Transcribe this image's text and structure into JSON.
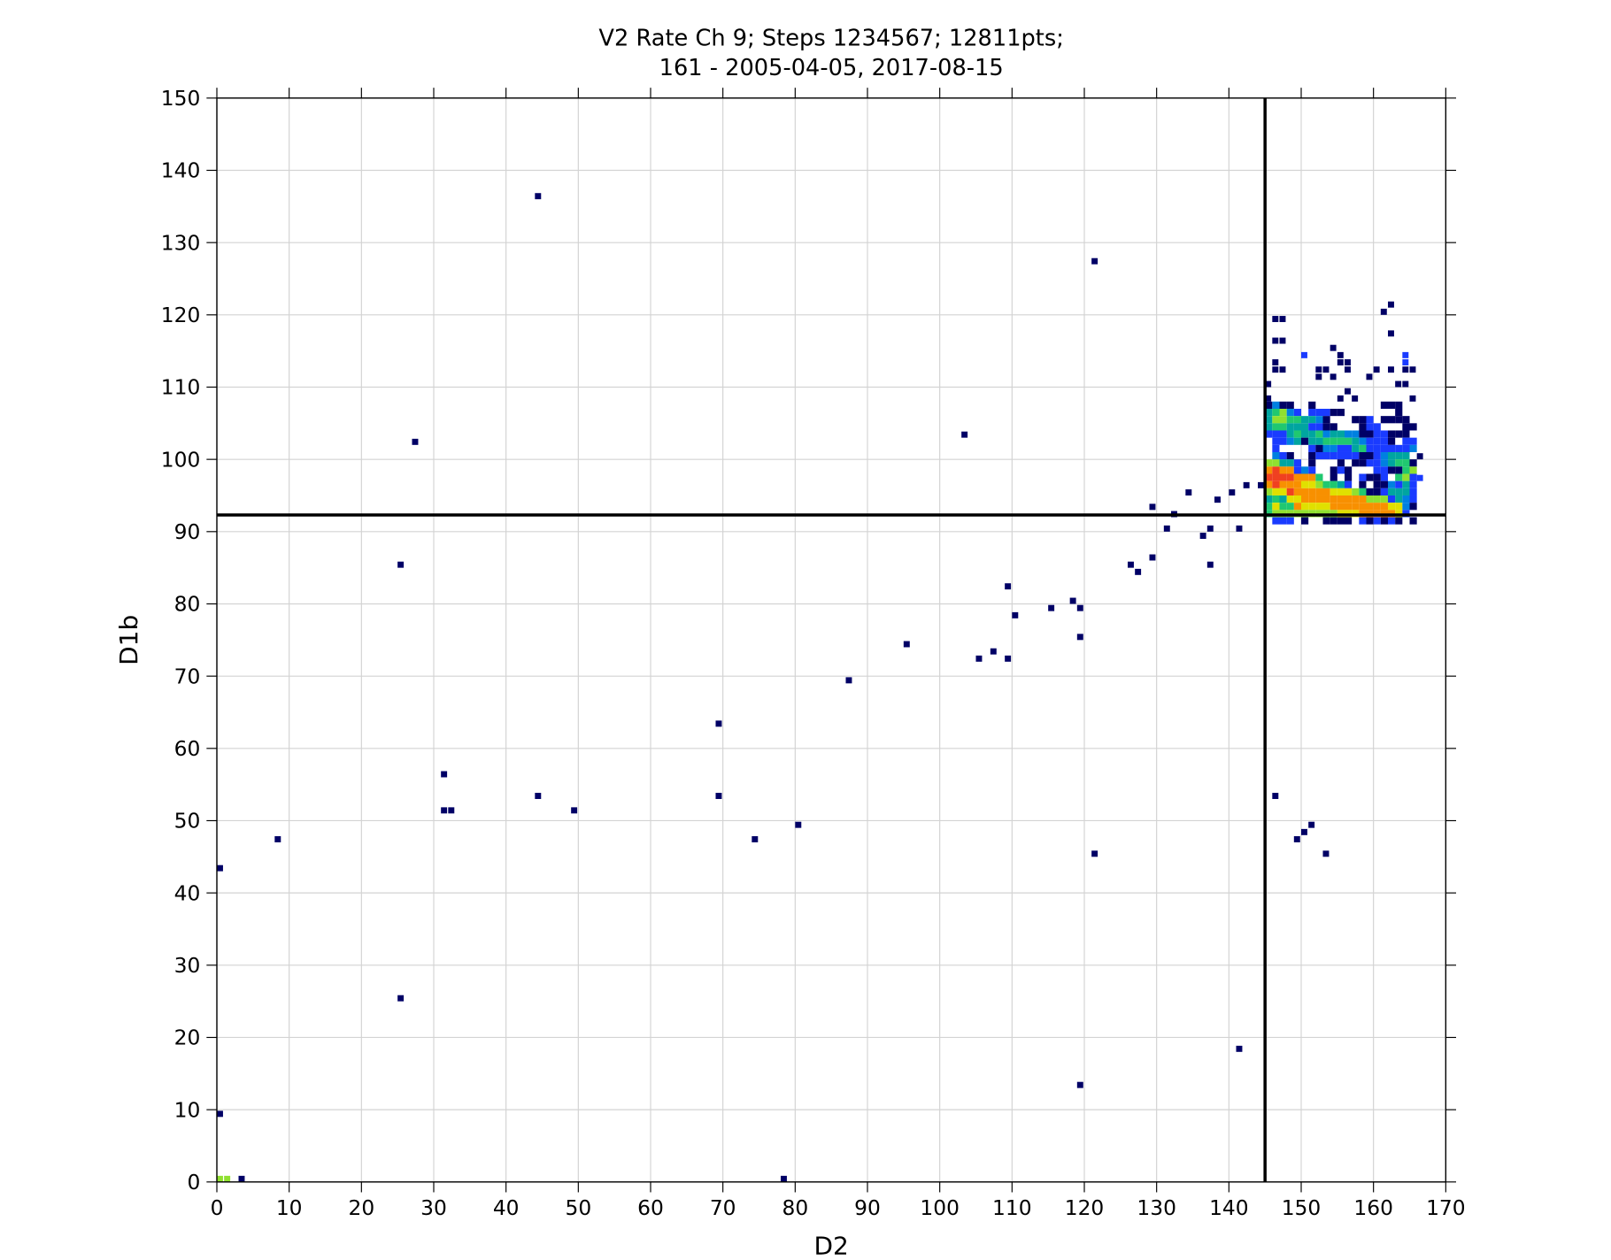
{
  "chart_data": {
    "type": "heatmap",
    "title_lines": [
      "V2 Rate Ch 9; Steps 1234567; 12811pts;",
      "161 - 2005-04-05, 2017-08-15"
    ],
    "xlabel": "D2",
    "ylabel": "D1b",
    "xlim": [
      0,
      170
    ],
    "ylim": [
      0,
      150
    ],
    "xticks": [
      0,
      10,
      20,
      30,
      40,
      50,
      60,
      70,
      80,
      90,
      100,
      110,
      120,
      130,
      140,
      150,
      160,
      170
    ],
    "yticks": [
      0,
      10,
      20,
      30,
      40,
      50,
      60,
      70,
      80,
      90,
      100,
      110,
      120,
      130,
      140,
      150
    ],
    "grid": true,
    "crosshair": {
      "x": 145,
      "y": 92.3
    },
    "level_colors": [
      "#ffffff",
      "#000066",
      "#1a3bff",
      "#0080e0",
      "#00a5a0",
      "#20c870",
      "#90e030",
      "#e0e000",
      "#f89000",
      "#f04020"
    ],
    "isolated_points": [
      [
        44,
        136,
        1
      ],
      [
        121,
        127,
        1
      ],
      [
        27,
        102,
        1
      ],
      [
        103,
        103,
        1
      ],
      [
        25,
        85,
        1
      ],
      [
        129,
        93,
        1
      ],
      [
        132,
        92,
        1
      ],
      [
        134,
        95,
        1
      ],
      [
        131,
        90,
        1
      ],
      [
        137,
        90,
        1
      ],
      [
        141,
        90,
        1
      ],
      [
        136,
        89,
        1
      ],
      [
        138,
        94,
        1
      ],
      [
        140,
        95,
        1
      ],
      [
        142,
        96,
        1
      ],
      [
        144,
        96,
        1
      ],
      [
        129,
        86,
        1
      ],
      [
        126,
        85,
        1
      ],
      [
        127,
        84,
        1
      ],
      [
        137,
        85,
        1
      ],
      [
        109,
        82,
        1
      ],
      [
        118,
        80,
        1
      ],
      [
        119,
        79,
        1
      ],
      [
        110,
        78,
        1
      ],
      [
        115,
        79,
        1
      ],
      [
        119,
        75,
        1
      ],
      [
        95,
        74,
        1
      ],
      [
        105,
        72,
        1
      ],
      [
        107,
        73,
        1
      ],
      [
        109,
        72,
        1
      ],
      [
        87,
        69,
        1
      ],
      [
        69,
        63,
        1
      ],
      [
        31,
        56,
        1
      ],
      [
        31,
        51,
        1
      ],
      [
        32,
        51,
        1
      ],
      [
        44,
        53,
        1
      ],
      [
        49,
        51,
        1
      ],
      [
        69,
        53,
        1
      ],
      [
        74,
        47,
        1
      ],
      [
        80,
        49,
        1
      ],
      [
        8,
        47,
        1
      ],
      [
        0,
        43,
        1
      ],
      [
        146,
        53,
        1
      ],
      [
        150,
        48,
        1
      ],
      [
        151,
        49,
        1
      ],
      [
        149,
        47,
        1
      ],
      [
        153,
        45,
        1
      ],
      [
        121,
        45,
        1
      ],
      [
        25,
        25,
        1
      ],
      [
        141,
        18,
        1
      ],
      [
        119,
        13,
        1
      ],
      [
        0,
        9,
        1
      ],
      [
        3,
        0,
        1
      ],
      [
        78,
        0,
        1
      ],
      [
        0,
        0,
        6
      ],
      [
        1,
        0,
        6
      ],
      [
        162,
        121,
        1
      ],
      [
        161,
        120,
        1
      ],
      [
        146,
        119,
        1
      ],
      [
        147,
        119,
        1
      ],
      [
        162,
        117,
        1
      ],
      [
        146,
        116,
        1
      ],
      [
        147,
        116,
        1
      ],
      [
        154,
        115,
        1
      ],
      [
        150,
        114,
        2
      ],
      [
        155,
        114,
        1
      ],
      [
        164,
        114,
        2
      ],
      [
        146,
        113,
        1
      ],
      [
        155,
        113,
        1
      ],
      [
        156,
        113,
        1
      ],
      [
        164,
        113,
        2
      ],
      [
        146,
        112,
        1
      ],
      [
        147,
        112,
        1
      ],
      [
        152,
        112,
        1
      ],
      [
        153,
        112,
        1
      ],
      [
        156,
        112,
        1
      ],
      [
        160,
        112,
        1
      ],
      [
        162,
        112,
        1
      ],
      [
        164,
        112,
        1
      ],
      [
        165,
        112,
        1
      ],
      [
        152,
        111,
        1
      ],
      [
        154,
        111,
        1
      ],
      [
        159,
        111,
        1
      ],
      [
        145,
        110,
        1
      ],
      [
        163,
        110,
        1
      ],
      [
        164,
        110,
        1
      ],
      [
        156,
        109,
        1
      ],
      [
        145,
        108,
        1
      ],
      [
        155,
        108,
        1
      ],
      [
        157,
        108,
        1
      ],
      [
        165,
        108,
        1
      ],
      [
        166,
        100,
        1
      ],
      [
        166,
        97,
        2
      ]
    ],
    "cluster": {
      "x_start": 145,
      "y_top": 107,
      "rows": [
        "131100100000000011100",
        "456320222110000000100",
        "466554431000112011110",
        "455444221100012200011",
        "222454453443311221110",
        "022341445555432221022",
        "020000213322452222223",
        "032100122222211234440",
        "664420100010112234551",
        "898823200121000221156",
        "999988850101021120562",
        "898887765542010113242",
        "677988888777651124442",
        "454778888888886662432",
        "575587777888888887731",
        "566666666677788888720",
        "022201001111021212101"
      ]
    }
  }
}
